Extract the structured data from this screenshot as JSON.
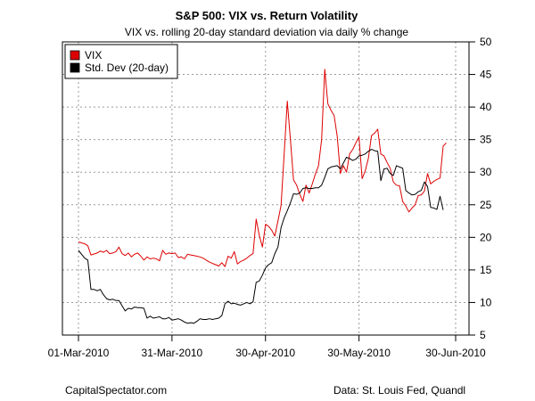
{
  "chart_data": {
    "type": "line",
    "title": "S&P 500: VIX vs. Return Volatility",
    "subtitle": "VIX vs. rolling 20-day standard deviation via daily % change",
    "ylim": [
      5,
      50
    ],
    "y_ticks": [
      "5",
      "10",
      "15",
      "20",
      "25",
      "30",
      "35",
      "40",
      "45",
      "50"
    ],
    "y_axis_side": "right",
    "xlim": [
      0,
      121
    ],
    "x_ticks": [
      {
        "label": "01-Mar-2010",
        "day": 0
      },
      {
        "label": "31-Mar-2010",
        "day": 30
      },
      {
        "label": "30-Apr-2010",
        "day": 60
      },
      {
        "label": "30-May-2010",
        "day": 90
      },
      {
        "label": "30-Jun-2010",
        "day": 121
      }
    ],
    "grid": true,
    "legend_position": "top-left",
    "series": [
      {
        "name": "VIX",
        "color": "#dd0000",
        "points": [
          [
            0,
            19.3
          ],
          [
            2,
            19.0
          ],
          [
            3,
            18.7
          ],
          [
            4,
            17.3
          ],
          [
            6,
            17.6
          ],
          [
            7,
            17.9
          ],
          [
            8,
            17.7
          ],
          [
            9,
            18.0
          ],
          [
            10,
            17.5
          ],
          [
            11,
            17.6
          ],
          [
            12,
            17.8
          ],
          [
            13,
            18.5
          ],
          [
            14,
            17.5
          ],
          [
            15,
            17.2
          ],
          [
            16,
            17.6
          ],
          [
            17,
            17.0
          ],
          [
            18,
            17.4
          ],
          [
            19,
            17.6
          ],
          [
            20,
            17.1
          ],
          [
            21,
            16.5
          ],
          [
            22,
            17.0
          ],
          [
            23,
            16.7
          ],
          [
            24,
            16.8
          ],
          [
            25,
            16.7
          ],
          [
            26,
            16.4
          ],
          [
            27,
            18.0
          ],
          [
            28,
            17.4
          ],
          [
            29,
            17.6
          ],
          [
            30,
            17.5
          ],
          [
            31,
            17.6
          ],
          [
            32,
            16.9
          ],
          [
            33,
            17.0
          ],
          [
            34,
            16.7
          ],
          [
            35,
            17.4
          ],
          [
            36,
            17.3
          ],
          [
            37,
            17.2
          ],
          [
            38,
            17.1
          ],
          [
            39,
            17.0
          ],
          [
            40,
            16.8
          ],
          [
            41,
            16.5
          ],
          [
            42,
            16.2
          ],
          [
            43,
            16.0
          ],
          [
            44,
            15.8
          ],
          [
            45,
            15.6
          ],
          [
            46,
            16.1
          ],
          [
            47,
            15.5
          ],
          [
            48,
            17.1
          ],
          [
            49,
            16.8
          ],
          [
            50,
            17.8
          ],
          [
            51,
            15.9
          ],
          [
            52,
            16.3
          ],
          [
            53,
            16.5
          ],
          [
            54,
            16.8
          ],
          [
            55,
            17.2
          ],
          [
            56,
            17.5
          ],
          [
            57,
            22.8
          ],
          [
            58,
            20.3
          ],
          [
            59,
            18.5
          ],
          [
            60,
            22.0
          ],
          [
            61,
            21.7
          ],
          [
            62,
            21.1
          ],
          [
            63,
            20.2
          ],
          [
            64,
            22.5
          ],
          [
            65,
            24.9
          ],
          [
            66,
            32.8
          ],
          [
            67,
            40.9
          ],
          [
            68,
            35.0
          ],
          [
            69,
            28.8
          ],
          [
            70,
            28.0
          ],
          [
            71,
            26.6
          ],
          [
            72,
            25.5
          ],
          [
            73,
            28.0
          ],
          [
            74,
            26.8
          ],
          [
            75,
            28.2
          ],
          [
            76,
            29.7
          ],
          [
            77,
            31.0
          ],
          [
            78,
            35.0
          ],
          [
            79,
            45.8
          ],
          [
            80,
            40.5
          ],
          [
            81,
            39.5
          ],
          [
            82,
            38.7
          ],
          [
            83,
            35.5
          ],
          [
            84,
            29.8
          ],
          [
            85,
            31.0
          ],
          [
            86,
            30.0
          ],
          [
            87,
            32.8
          ],
          [
            88,
            33.5
          ],
          [
            89,
            34.5
          ],
          [
            90,
            35.4
          ],
          [
            91,
            29.0
          ],
          [
            92,
            30.2
          ],
          [
            93,
            32.1
          ],
          [
            94,
            35.6
          ],
          [
            95,
            36.0
          ],
          [
            96,
            36.6
          ],
          [
            97,
            32.8
          ],
          [
            98,
            32.5
          ],
          [
            99,
            31.5
          ],
          [
            100,
            30.6
          ],
          [
            101,
            28.5
          ],
          [
            102,
            28.0
          ],
          [
            103,
            27.9
          ],
          [
            104,
            25.5
          ],
          [
            105,
            24.8
          ],
          [
            106,
            23.9
          ],
          [
            107,
            24.5
          ],
          [
            108,
            25.0
          ],
          [
            109,
            26.4
          ],
          [
            110,
            26.5
          ],
          [
            111,
            27.1
          ],
          [
            112,
            29.8
          ],
          [
            113,
            28.2
          ],
          [
            114,
            28.6
          ],
          [
            115,
            28.9
          ],
          [
            116,
            29.1
          ],
          [
            117,
            34.0
          ],
          [
            118,
            34.5
          ]
        ]
      },
      {
        "name": "Std. Dev (20-day)",
        "color": "#000000",
        "points": [
          [
            0,
            18.0
          ],
          [
            2,
            16.8
          ],
          [
            3,
            16.5
          ],
          [
            4,
            12.0
          ],
          [
            5,
            12.0
          ],
          [
            6,
            11.8
          ],
          [
            7,
            12.0
          ],
          [
            8,
            11.2
          ],
          [
            9,
            10.6
          ],
          [
            10,
            10.4
          ],
          [
            11,
            10.5
          ],
          [
            12,
            10.3
          ],
          [
            13,
            10.3
          ],
          [
            14,
            9.5
          ],
          [
            15,
            8.7
          ],
          [
            16,
            9.1
          ],
          [
            17,
            9.0
          ],
          [
            18,
            9.3
          ],
          [
            19,
            9.2
          ],
          [
            20,
            9.2
          ],
          [
            21,
            9.1
          ],
          [
            22,
            7.6
          ],
          [
            23,
            7.9
          ],
          [
            24,
            7.6
          ],
          [
            25,
            7.7
          ],
          [
            26,
            7.8
          ],
          [
            27,
            7.5
          ],
          [
            28,
            7.5
          ],
          [
            29,
            7.7
          ],
          [
            30,
            7.3
          ],
          [
            31,
            7.4
          ],
          [
            32,
            7.5
          ],
          [
            33,
            7.3
          ],
          [
            34,
            7.0
          ],
          [
            35,
            6.8
          ],
          [
            36,
            6.9
          ],
          [
            37,
            6.8
          ],
          [
            38,
            7.1
          ],
          [
            39,
            7.5
          ],
          [
            40,
            7.4
          ],
          [
            41,
            7.4
          ],
          [
            42,
            7.5
          ],
          [
            43,
            7.4
          ],
          [
            44,
            7.5
          ],
          [
            45,
            7.6
          ],
          [
            46,
            8.0
          ],
          [
            47,
            9.8
          ],
          [
            48,
            10.2
          ],
          [
            49,
            9.8
          ],
          [
            50,
            9.9
          ],
          [
            51,
            9.7
          ],
          [
            52,
            9.6
          ],
          [
            53,
            9.8
          ],
          [
            54,
            10.0
          ],
          [
            55,
            9.8
          ],
          [
            56,
            10.1
          ],
          [
            57,
            13.1
          ],
          [
            58,
            13.3
          ],
          [
            59,
            14.2
          ],
          [
            60,
            15.3
          ],
          [
            61,
            15.8
          ],
          [
            62,
            16.1
          ],
          [
            63,
            17.5
          ],
          [
            64,
            18.5
          ],
          [
            65,
            21.5
          ],
          [
            66,
            23.0
          ],
          [
            67,
            24.1
          ],
          [
            68,
            25.3
          ],
          [
            69,
            26.7
          ],
          [
            70,
            26.6
          ],
          [
            71,
            26.8
          ],
          [
            72,
            27.5
          ],
          [
            73,
            27.6
          ],
          [
            74,
            27.5
          ],
          [
            75,
            27.5
          ],
          [
            76,
            27.6
          ],
          [
            77,
            27.6
          ],
          [
            78,
            28.0
          ],
          [
            79,
            29.2
          ],
          [
            80,
            30.5
          ],
          [
            81,
            30.8
          ],
          [
            82,
            30.9
          ],
          [
            83,
            31.0
          ],
          [
            84,
            30.5
          ],
          [
            85,
            31.4
          ],
          [
            86,
            32.3
          ],
          [
            87,
            32.1
          ],
          [
            88,
            31.8
          ],
          [
            89,
            32.0
          ],
          [
            90,
            32.5
          ],
          [
            91,
            32.6
          ],
          [
            92,
            32.8
          ],
          [
            93,
            33.2
          ],
          [
            94,
            33.5
          ],
          [
            95,
            33.3
          ],
          [
            96,
            33.2
          ],
          [
            97,
            28.7
          ],
          [
            98,
            30.5
          ],
          [
            99,
            30.6
          ],
          [
            100,
            29.8
          ],
          [
            101,
            29.5
          ],
          [
            102,
            31.0
          ],
          [
            103,
            30.8
          ],
          [
            104,
            30.6
          ],
          [
            105,
            27.2
          ],
          [
            106,
            26.8
          ],
          [
            107,
            26.5
          ],
          [
            108,
            26.6
          ],
          [
            109,
            27.0
          ],
          [
            110,
            27.2
          ],
          [
            111,
            28.5
          ],
          [
            112,
            27.8
          ],
          [
            113,
            24.6
          ],
          [
            114,
            24.5
          ],
          [
            115,
            24.3
          ],
          [
            116,
            26.3
          ],
          [
            117,
            24.2
          ]
        ]
      }
    ]
  },
  "footer": {
    "left": "CapitalSpectator.com",
    "right": "Data: St. Louis Fed, Quandl"
  }
}
